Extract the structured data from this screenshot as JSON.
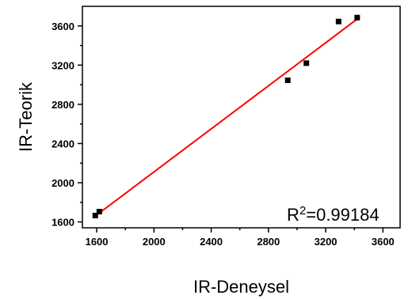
{
  "chart_data": {
    "type": "scatter",
    "xlabel": "IR-Deneysel",
    "ylabel": "IR-Teorik",
    "xlim": [
      1500,
      3720
    ],
    "ylim": [
      1540,
      3800
    ],
    "xticks": [
      1600,
      2000,
      2400,
      2800,
      3200,
      3600
    ],
    "yticks": [
      1600,
      2000,
      2400,
      2800,
      3200,
      3600
    ],
    "xtick_labels": [
      "1600",
      "2000",
      "2400",
      "2800",
      "3200",
      "3600"
    ],
    "ytick_labels": [
      "1600",
      "2000",
      "2400",
      "2800",
      "3200",
      "3600"
    ],
    "grid": false,
    "points": [
      {
        "x": 1590,
        "y": 1665
      },
      {
        "x": 1618,
        "y": 1705
      },
      {
        "x": 2935,
        "y": 3045
      },
      {
        "x": 3065,
        "y": 3220
      },
      {
        "x": 3290,
        "y": 3645
      },
      {
        "x": 3420,
        "y": 3685
      }
    ],
    "fit_line": {
      "x": [
        1590,
        3420
      ],
      "y": [
        1660,
        3670
      ],
      "color": "#ff0000"
    },
    "marker_color": "#000000",
    "annotation": {
      "prefix": "R",
      "superscript": "2",
      "value": "=0.99184"
    }
  }
}
